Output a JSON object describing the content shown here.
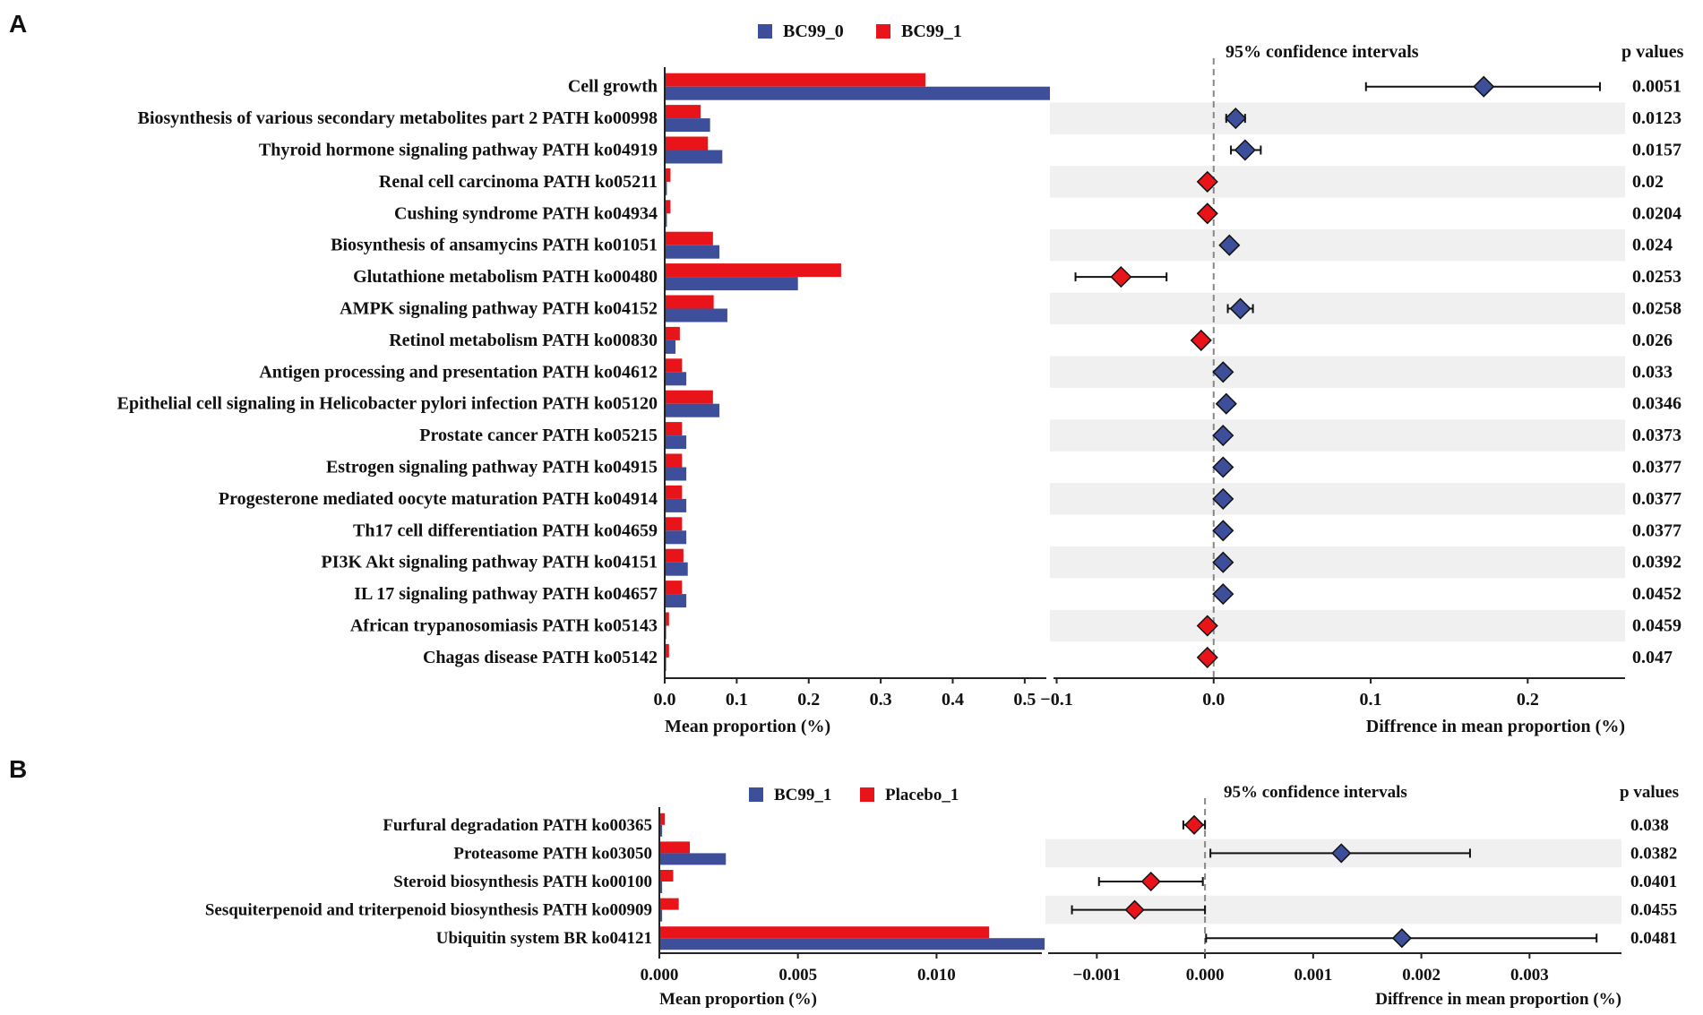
{
  "colors": {
    "blue": "#3d4e9a",
    "red": "#e8141a",
    "band": "#f0f0f0",
    "axis": "#222222",
    "dash": "#888888"
  },
  "chart_data": [
    {
      "type": "bar",
      "panel": "A",
      "legend": [
        "BC99_0",
        "BC99_1"
      ],
      "xlabel": "Mean proportion (%)",
      "xlim": [
        0,
        0.53
      ],
      "xticks": [
        "0.0",
        "0.1",
        "0.2",
        "0.3",
        "0.4",
        "0.5"
      ],
      "xtick_values": [
        0,
        0.1,
        0.2,
        0.3,
        0.4,
        0.5
      ],
      "categories": [
        "Cell growth",
        "Biosynthesis of various secondary metabolites  part 2 PATH ko00998",
        "Thyroid hormone signaling pathway PATH ko04919",
        "Renal cell carcinoma PATH ko05211",
        "Cushing syndrome PATH ko04934",
        "Biosynthesis of ansamycins PATH ko01051",
        "Glutathione metabolism PATH ko00480",
        "AMPK signaling pathway PATH ko04152",
        "Retinol metabolism PATH ko00830",
        "Antigen processing and presentation PATH ko04612",
        "Epithelial cell signaling in Helicobacter pylori infection PATH ko05120",
        "Prostate cancer PATH ko05215",
        "Estrogen signaling pathway PATH ko04915",
        "Progesterone mediated oocyte maturation PATH ko04914",
        "Th17 cell differentiation PATH ko04659",
        "PI3K Akt signaling pathway PATH ko04151",
        "IL 17 signaling pathway PATH ko04657",
        "African trypanosomiasis PATH ko05143",
        "Chagas disease PATH ko05142"
      ],
      "series": [
        {
          "name": "BC99_0",
          "values": [
            0.535,
            0.063,
            0.08,
            0.003,
            0.003,
            0.076,
            0.185,
            0.087,
            0.015,
            0.03,
            0.076,
            0.03,
            0.03,
            0.03,
            0.03,
            0.032,
            0.03,
            0.002,
            0.002
          ]
        },
        {
          "name": "BC99_1",
          "values": [
            0.362,
            0.05,
            0.06,
            0.008,
            0.008,
            0.067,
            0.245,
            0.068,
            0.021,
            0.024,
            0.067,
            0.024,
            0.024,
            0.024,
            0.024,
            0.026,
            0.024,
            0.006,
            0.006
          ]
        }
      ],
      "ci": {
        "title": "95% confidence intervals",
        "xlabel": "Diffrence in mean proportion (%)",
        "xlim": [
          -0.102,
          0.262
        ],
        "xticks": [
          "−0.1",
          "0.0",
          "0.1",
          "0.2"
        ],
        "xtick_values": [
          -0.1,
          0.0,
          0.1,
          0.2
        ],
        "estimates": [
          0.172,
          0.014,
          0.02,
          -0.004,
          -0.004,
          0.01,
          -0.059,
          0.017,
          -0.008,
          0.006,
          0.008,
          0.006,
          0.006,
          0.006,
          0.006,
          0.006,
          0.006,
          -0.004,
          -0.004
        ],
        "lower": [
          0.097,
          0.008,
          0.011,
          -0.004,
          -0.004,
          0.01,
          -0.088,
          0.009,
          -0.008,
          0.006,
          0.008,
          0.006,
          0.006,
          0.006,
          0.006,
          0.006,
          0.006,
          -0.004,
          -0.004
        ],
        "upper": [
          0.246,
          0.02,
          0.03,
          -0.004,
          -0.004,
          0.01,
          -0.03,
          0.025,
          -0.008,
          0.006,
          0.008,
          0.006,
          0.006,
          0.006,
          0.006,
          0.006,
          0.006,
          -0.004,
          -0.004
        ],
        "colors": [
          "blue",
          "blue",
          "blue",
          "red",
          "red",
          "blue",
          "red",
          "blue",
          "red",
          "blue",
          "blue",
          "blue",
          "blue",
          "blue",
          "blue",
          "blue",
          "blue",
          "red",
          "red"
        ]
      },
      "pvalues_title": "p values",
      "pvalues": [
        "0.0051",
        "0.0123",
        "0.0157",
        "0.02",
        "0.0204",
        "0.024",
        "0.0253",
        "0.0258",
        "0.026",
        "0.033",
        "0.0346",
        "0.0373",
        "0.0377",
        "0.0377",
        "0.0377",
        "0.0392",
        "0.0452",
        "0.0459",
        "0.047"
      ]
    },
    {
      "type": "bar",
      "panel": "B",
      "legend": [
        "BC99_1",
        "Placebo_1"
      ],
      "xlabel": "Mean proportion (%)",
      "xlim": [
        0,
        0.0138
      ],
      "xticks": [
        "0.000",
        "0.005",
        "0.010"
      ],
      "xtick_values": [
        0,
        0.005,
        0.01
      ],
      "categories": [
        "Furfural degradation PATH ko00365",
        "Proteasome PATH ko03050",
        "Steroid biosynthesis PATH ko00100",
        "Sesquiterpenoid and triterpenoid biosynthesis PATH ko00909",
        "Ubiquitin system BR ko04121"
      ],
      "series": [
        {
          "name": "BC99_1",
          "values": [
            0.0001,
            0.0024,
            0.0001,
            0.0001,
            0.0139
          ]
        },
        {
          "name": "Placebo_1",
          "values": [
            0.0002,
            0.0011,
            0.0005,
            0.0007,
            0.0119
          ]
        }
      ],
      "ci": {
        "title": "95% confidence intervals",
        "xlabel": "Diffrence in mean proportion (%)",
        "xlim": [
          -0.00145,
          0.00385
        ],
        "xticks": [
          "−0.001",
          "0.000",
          "0.001",
          "0.002",
          "0.003"
        ],
        "xtick_values": [
          -0.001,
          0.0,
          0.001,
          0.002,
          0.003
        ],
        "estimates": [
          -0.0001,
          0.00126,
          -0.0005,
          -0.00065,
          0.00182
        ],
        "lower": [
          -0.0002,
          5e-05,
          -0.00098,
          -0.00123,
          1e-05
        ],
        "upper": [
          0.0,
          0.00245,
          -2e-05,
          0.0,
          0.00362
        ],
        "colors": [
          "red",
          "blue",
          "red",
          "red",
          "blue"
        ]
      },
      "pvalues_title": "p values",
      "pvalues": [
        "0.038",
        "0.0382",
        "0.0401",
        "0.0455",
        "0.0481"
      ]
    }
  ]
}
